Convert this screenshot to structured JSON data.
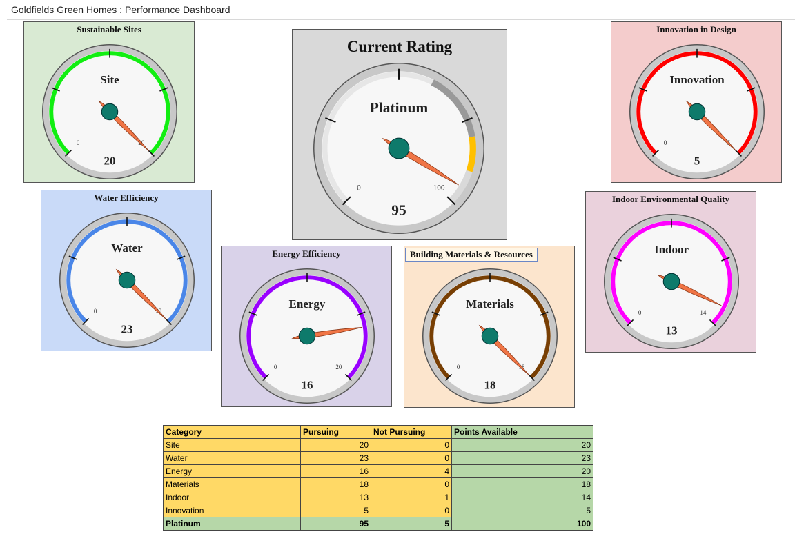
{
  "page": {
    "title": "Goldfields Green Homes : Performance Dashboard"
  },
  "gauges": [
    {
      "id": "site",
      "title": "Sustainable Sites",
      "label": "Site",
      "value": 20,
      "min": 0,
      "max": 20,
      "min_label": "0",
      "max_label": "20",
      "value_label": "20",
      "color": "#11ee11",
      "bg": "#d9ead3"
    },
    {
      "id": "innovation",
      "title": "Innovation in Design",
      "label": "Innovation",
      "value": 5,
      "min": 0,
      "max": 5,
      "min_label": "0",
      "max_label": "5",
      "value_label": "5",
      "color": "#ff0000",
      "bg": "#f4cccc"
    },
    {
      "id": "water",
      "title": "Water Efficiency",
      "label": "Water",
      "value": 23,
      "min": 0,
      "max": 23,
      "min_label": "0",
      "max_label": "23",
      "value_label": "23",
      "color": "#4a86e8",
      "bg": "#c9daf8"
    },
    {
      "id": "energy",
      "title": "Energy Efficiency",
      "label": "Energy",
      "value": 16,
      "min": 0,
      "max": 20,
      "min_label": "0",
      "max_label": "20",
      "value_label": "16",
      "color": "#9900ff",
      "bg": "#d9d2e9"
    },
    {
      "id": "materials",
      "title": "Building Materials & Resources",
      "label": "Materials",
      "value": 18,
      "min": 0,
      "max": 18,
      "min_label": "0",
      "max_label": "18",
      "value_label": "18",
      "color": "#783f04",
      "bg": "#fce5cd"
    },
    {
      "id": "indoor",
      "title": "Indoor Environmental Quality",
      "label": "Indoor",
      "value": 13,
      "min": 0,
      "max": 14,
      "min_label": "0",
      "max_label": "14",
      "value_label": "13",
      "color": "#ff00ff",
      "bg": "#ead1dc"
    }
  ],
  "rating": {
    "title": "Current Rating",
    "label": "Platinum",
    "value": 95,
    "min": 0,
    "max": 100,
    "min_label": "0",
    "max_label": "100",
    "value_label": "95",
    "bands": [
      {
        "from": 60,
        "to": 80,
        "color": "#999999"
      },
      {
        "from": 80,
        "to": 90,
        "color": "#ffc000"
      },
      {
        "from": 90,
        "to": 100,
        "color": "#d9d9d9"
      }
    ]
  },
  "table": {
    "headers": [
      "Category",
      "Pursuing",
      "Not Pursuing",
      "Points Available"
    ],
    "rows": [
      [
        "Site",
        "20",
        "0",
        "20"
      ],
      [
        "Water",
        "23",
        "0",
        "23"
      ],
      [
        "Energy",
        "16",
        "4",
        "20"
      ],
      [
        "Materials",
        "18",
        "0",
        "18"
      ],
      [
        "Indoor",
        "13",
        "1",
        "14"
      ],
      [
        "Innovation",
        "5",
        "0",
        "5"
      ]
    ],
    "total": [
      "Platinum",
      "95",
      "5",
      "100"
    ]
  }
}
